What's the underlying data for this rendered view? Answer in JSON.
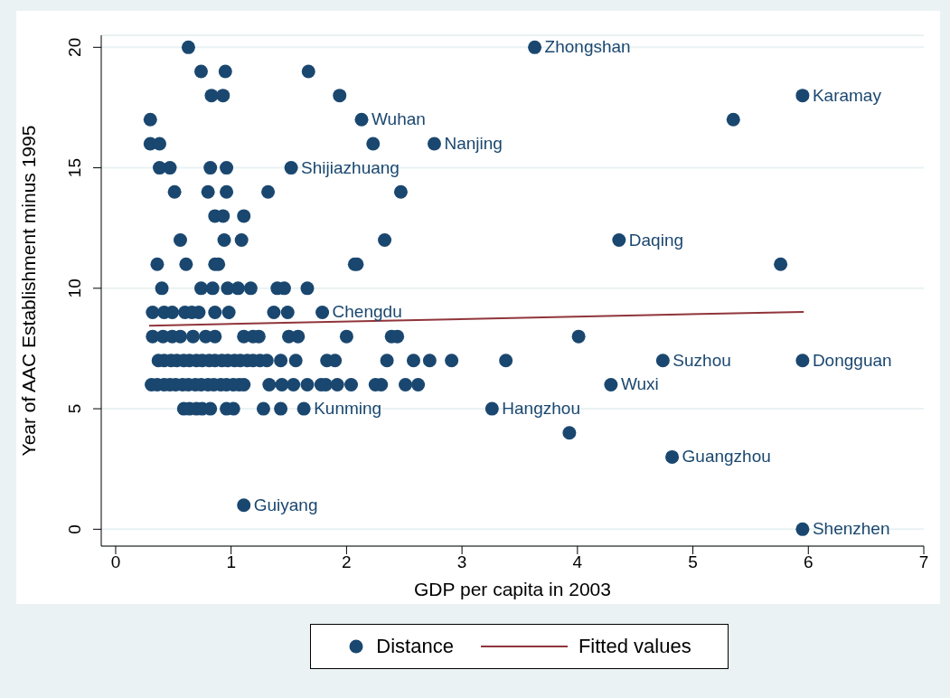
{
  "chart_data": {
    "type": "scatter",
    "xlabel": "GDP per capita in 2003",
    "ylabel": "Year of AAC Establishment minus 1995",
    "xlim": [
      -0.125,
      7
    ],
    "ylim": [
      -0.7,
      20.5
    ],
    "xticks": [
      0,
      1,
      2,
      3,
      4,
      5,
      6,
      7
    ],
    "yticks": [
      0,
      5,
      10,
      15,
      20
    ],
    "grid": "y",
    "legend": "bottom",
    "marker": "circle",
    "series": [
      {
        "name": "Distance",
        "color": "#1a476f",
        "x": [
          0.63,
          3.63,
          0.74,
          0.95,
          1.67,
          0.83,
          0.93,
          1.94,
          5.95,
          0.3,
          2.13,
          5.35,
          0.3,
          0.38,
          2.23,
          2.76,
          0.38,
          0.47,
          0.82,
          0.96,
          1.52,
          0.51,
          0.8,
          0.96,
          1.32,
          2.47,
          0.86,
          0.93,
          1.11,
          0.56,
          0.94,
          1.09,
          2.33,
          4.36,
          0.36,
          0.61,
          0.86,
          0.89,
          2.07,
          2.09,
          5.76,
          0.4,
          0.74,
          0.84,
          0.97,
          1.06,
          1.17,
          1.4,
          1.46,
          1.66,
          0.32,
          0.42,
          0.49,
          0.6,
          0.66,
          0.72,
          0.86,
          0.98,
          1.37,
          1.49,
          1.79,
          0.32,
          0.41,
          0.49,
          0.56,
          0.67,
          0.78,
          0.86,
          1.11,
          1.19,
          1.24,
          1.5,
          1.58,
          2.0,
          2.39,
          2.44,
          4.01,
          0.37,
          0.42,
          0.48,
          0.53,
          0.59,
          0.64,
          0.7,
          0.75,
          0.81,
          0.86,
          0.92,
          0.97,
          1.03,
          1.08,
          1.14,
          1.19,
          1.25,
          1.31,
          1.43,
          1.56,
          1.83,
          1.9,
          2.35,
          2.58,
          2.72,
          2.91,
          3.38,
          4.74,
          5.95,
          0.31,
          0.36,
          0.42,
          0.47,
          0.52,
          0.58,
          0.63,
          0.69,
          0.74,
          0.8,
          0.85,
          0.91,
          0.96,
          1.02,
          1.07,
          1.11,
          1.33,
          1.44,
          1.54,
          1.66,
          1.78,
          1.82,
          1.92,
          2.04,
          2.25,
          2.3,
          2.51,
          2.62,
          4.29,
          0.59,
          0.64,
          0.7,
          0.75,
          0.82,
          0.96,
          1.02,
          1.28,
          1.43,
          1.63,
          3.26,
          3.93,
          4.82,
          1.11,
          5.95
        ],
        "values": [
          20,
          20,
          19,
          19,
          19,
          18,
          18,
          18,
          18,
          17,
          17,
          17,
          16,
          16,
          16,
          16,
          15,
          15,
          15,
          15,
          15,
          14,
          14,
          14,
          14,
          14,
          13,
          13,
          13,
          12,
          12,
          12,
          12,
          12,
          11,
          11,
          11,
          11,
          11,
          11,
          11,
          10,
          10,
          10,
          10,
          10,
          10,
          10,
          10,
          10,
          9,
          9,
          9,
          9,
          9,
          9,
          9,
          9,
          9,
          9,
          9,
          8,
          8,
          8,
          8,
          8,
          8,
          8,
          8,
          8,
          8,
          8,
          8,
          8,
          8,
          8,
          8,
          7,
          7,
          7,
          7,
          7,
          7,
          7,
          7,
          7,
          7,
          7,
          7,
          7,
          7,
          7,
          7,
          7,
          7,
          7,
          7,
          7,
          7,
          7,
          7,
          7,
          7,
          7,
          7,
          7,
          6,
          6,
          6,
          6,
          6,
          6,
          6,
          6,
          6,
          6,
          6,
          6,
          6,
          6,
          6,
          6,
          6,
          6,
          6,
          6,
          6,
          6,
          6,
          6,
          6,
          6,
          6,
          6,
          6,
          5,
          5,
          5,
          5,
          5,
          5,
          5,
          5,
          5,
          5,
          5,
          4,
          3,
          1,
          0
        ]
      },
      {
        "name": "Fitted values",
        "type": "line",
        "marker": "none",
        "color": "#90353b",
        "x": [
          0.29,
          5.96
        ],
        "values": [
          8.45,
          9.02
        ]
      }
    ],
    "annotations": [
      {
        "text": "Zhongshan",
        "x": 3.63,
        "y": 20
      },
      {
        "text": "Karamay",
        "x": 5.95,
        "y": 18
      },
      {
        "text": "Wuhan",
        "x": 2.13,
        "y": 17
      },
      {
        "text": "Nanjing",
        "x": 2.76,
        "y": 16
      },
      {
        "text": "Shijiazhuang",
        "x": 1.52,
        "y": 15
      },
      {
        "text": "Daqing",
        "x": 4.36,
        "y": 12
      },
      {
        "text": "Chengdu",
        "x": 1.79,
        "y": 9
      },
      {
        "text": "Suzhou",
        "x": 4.74,
        "y": 7
      },
      {
        "text": "Dongguan",
        "x": 5.95,
        "y": 7
      },
      {
        "text": "Wuxi",
        "x": 4.29,
        "y": 6
      },
      {
        "text": "Kunming",
        "x": 1.63,
        "y": 5
      },
      {
        "text": "Hangzhou",
        "x": 3.26,
        "y": 5
      },
      {
        "text": "Guangzhou",
        "x": 4.82,
        "y": 3
      },
      {
        "text": "Guiyang",
        "x": 1.11,
        "y": 1
      },
      {
        "text": "Shenzhen",
        "x": 5.95,
        "y": 0
      }
    ]
  }
}
